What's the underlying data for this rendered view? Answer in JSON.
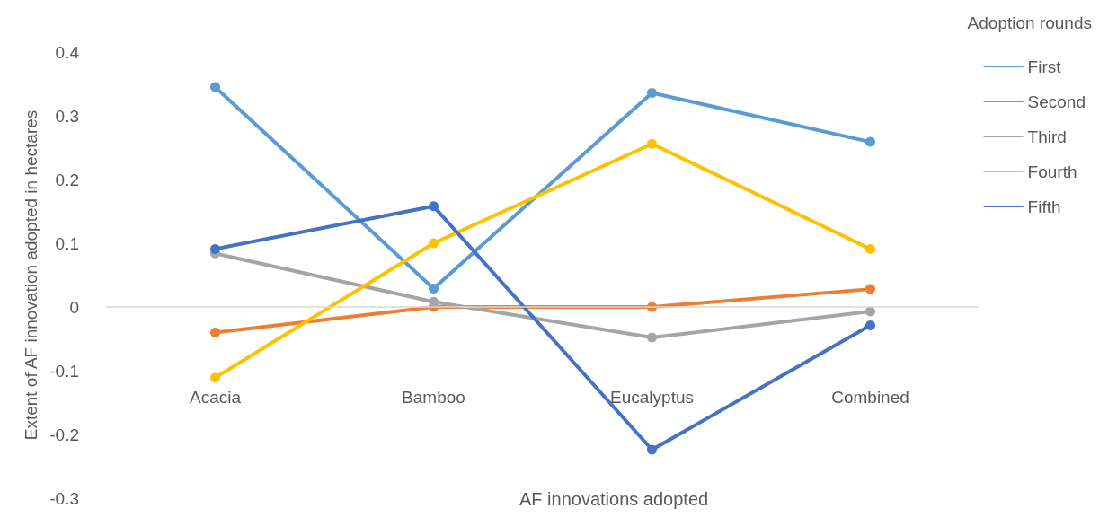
{
  "chart_data": {
    "type": "line",
    "xlabel": "AF innovations adopted",
    "ylabel": "Extent of AF innovation adopted in hectares",
    "legend_title": "Adoption rounds",
    "categories": [
      "Acacia",
      "Bamboo",
      "Eucalyptus",
      "Combined"
    ],
    "series": [
      {
        "name": "First",
        "color": "#5b9bd5",
        "values": [
          0.345,
          0.029,
          0.336,
          0.259
        ]
      },
      {
        "name": "Second",
        "color": "#ed7d31",
        "values": [
          -0.04,
          0.0,
          0.0,
          0.028
        ]
      },
      {
        "name": "Third",
        "color": "#a5a5a5",
        "values": [
          0.084,
          0.008,
          -0.048,
          -0.007
        ]
      },
      {
        "name": "Fourth",
        "color": "#ffc000",
        "values": [
          -0.111,
          0.1,
          0.256,
          0.091
        ]
      },
      {
        "name": "Fifth",
        "color": "#4472c4",
        "values": [
          0.091,
          0.158,
          -0.224,
          -0.029
        ]
      }
    ],
    "ylim": [
      -0.3,
      0.4
    ],
    "yticks": [
      -0.3,
      -0.2,
      -0.1,
      0,
      0.1,
      0.2,
      0.3,
      0.4
    ],
    "ref_lines": [
      {
        "axis": "y",
        "value": 0,
        "color": "#d9d9d9"
      }
    ],
    "grid": false,
    "legend": "right",
    "marker": "circle",
    "line_style": "solid"
  }
}
